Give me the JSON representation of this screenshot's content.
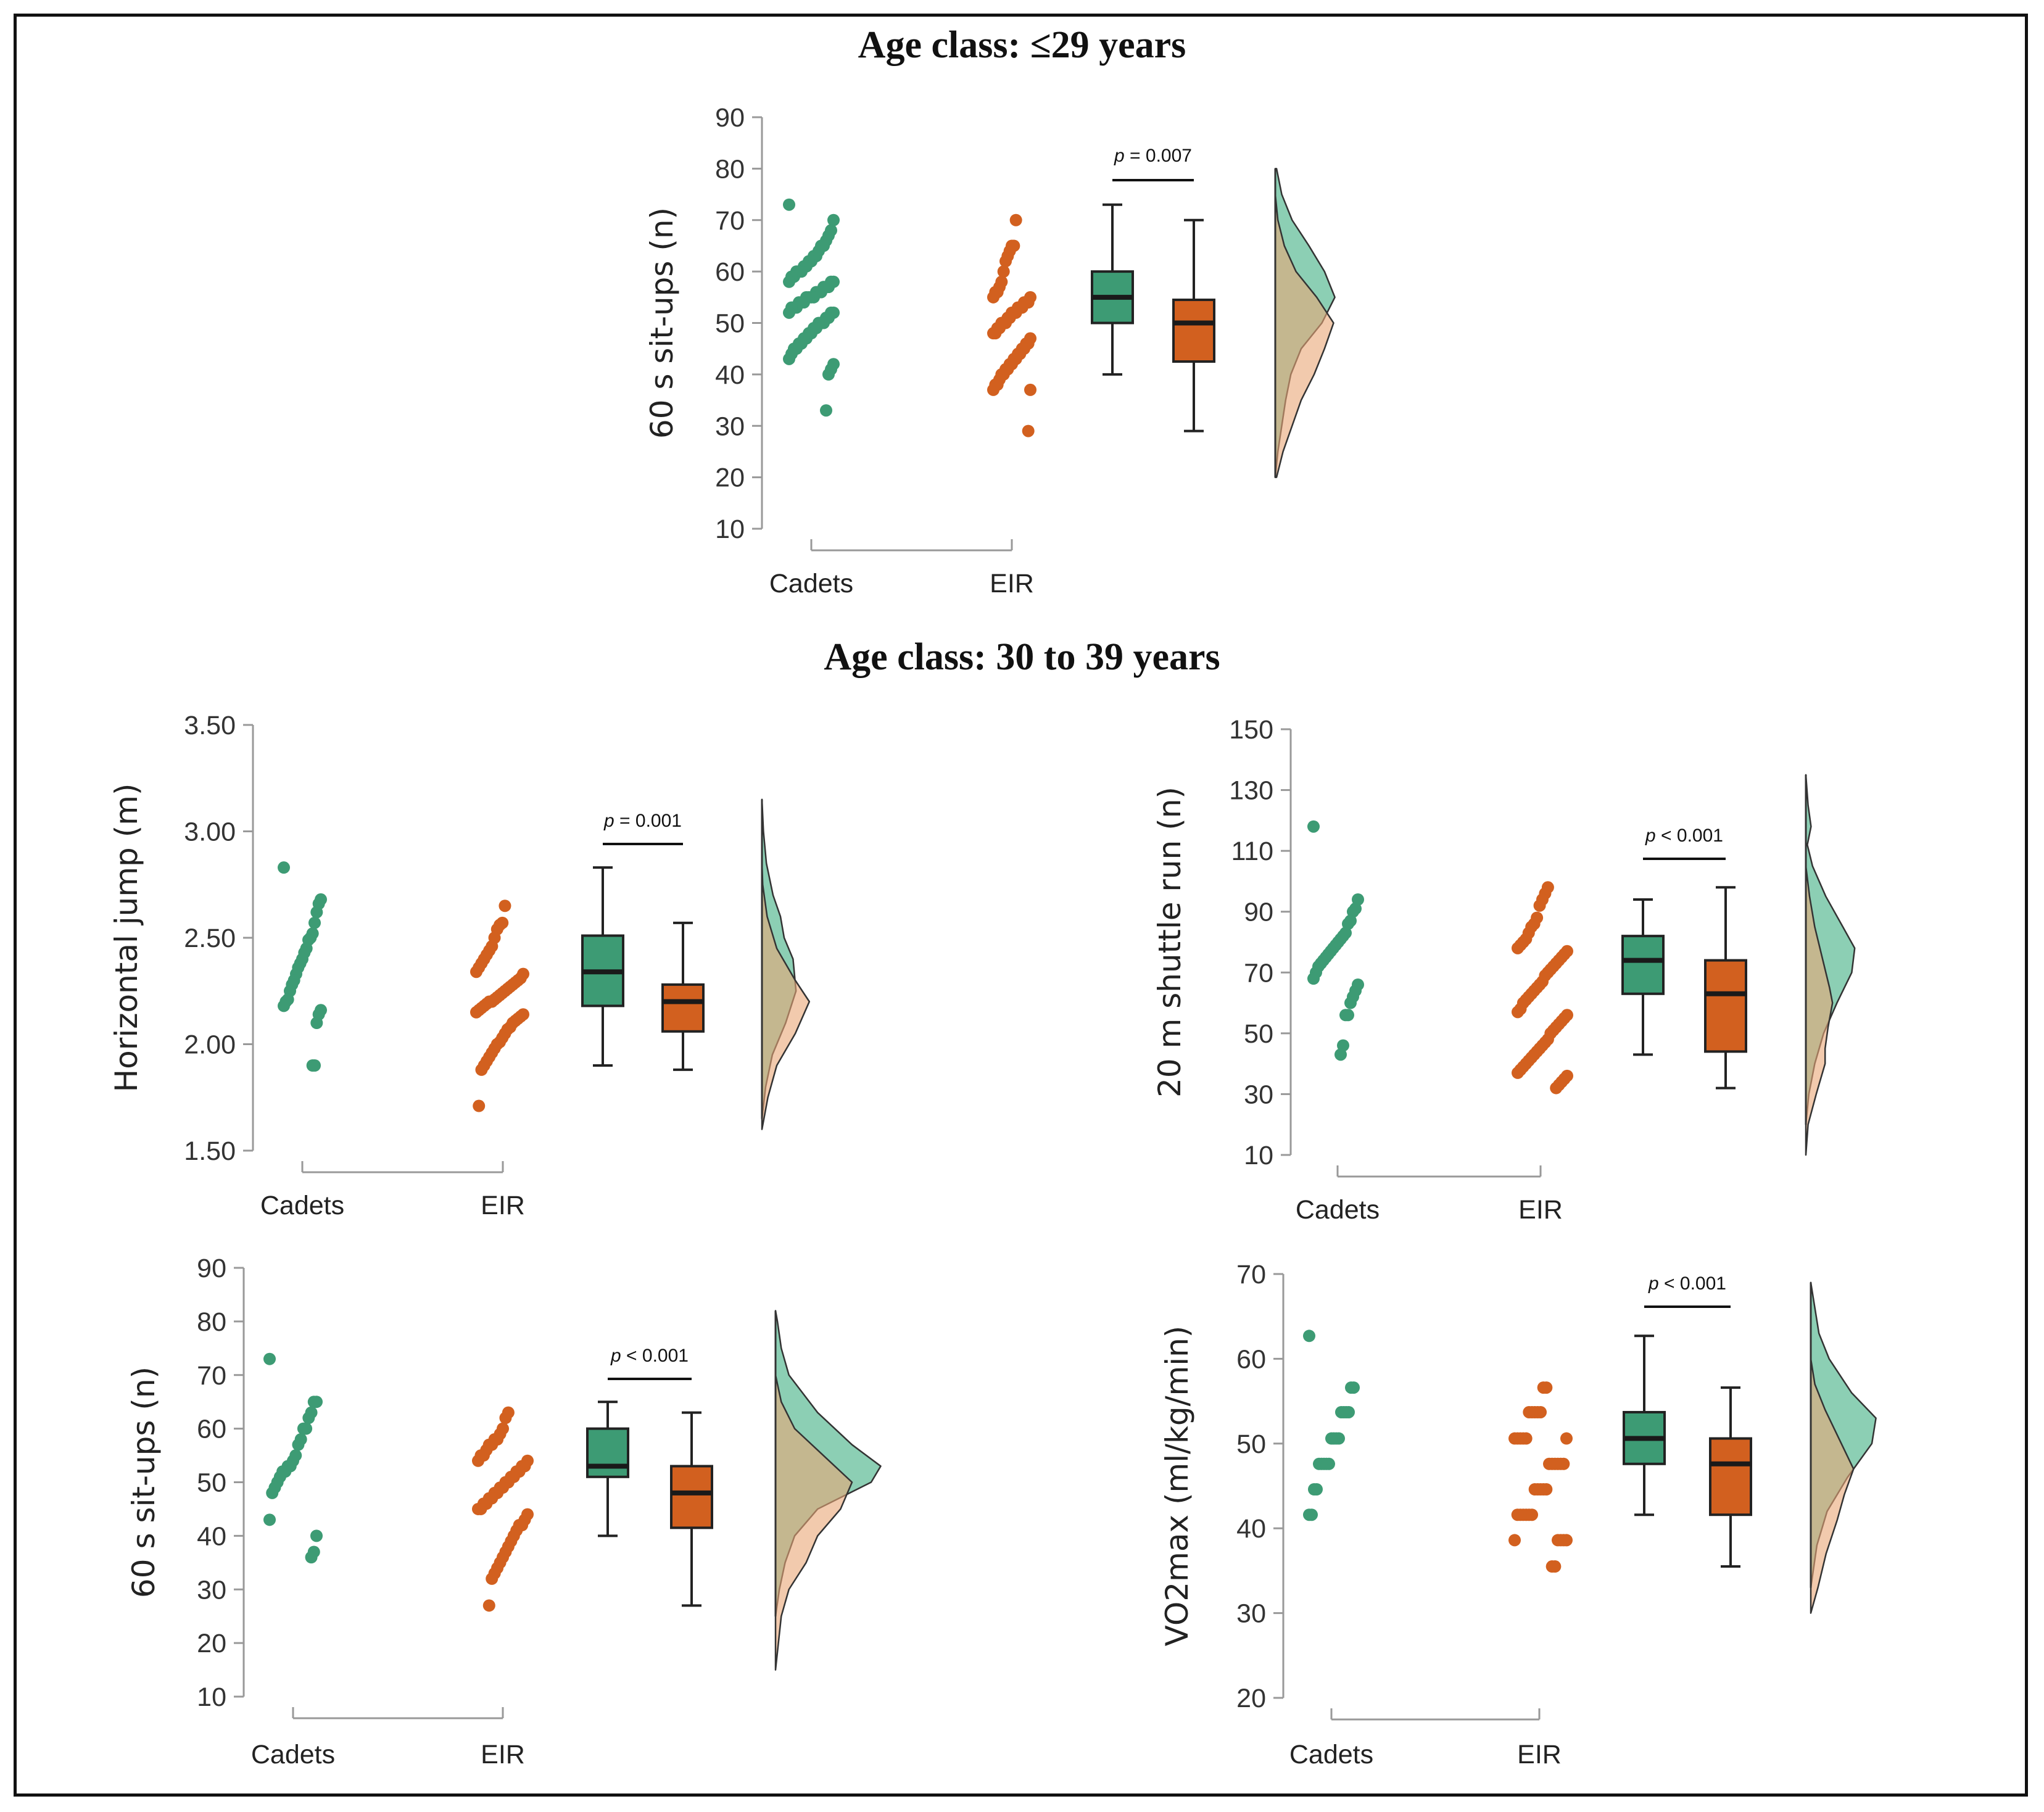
{
  "colors": {
    "cadets": "#3d9b74",
    "eir": "#d2601f",
    "cadets_density": "#8ccfb4",
    "eir_density": "#eaa677",
    "axis": "#999999",
    "box_line": "#222222"
  },
  "sections": [
    {
      "id": "s1",
      "title": "Age class: ≤29 years"
    },
    {
      "id": "s2",
      "title": "Age class: 30 to 39 years"
    }
  ],
  "chart_data": [
    {
      "type": "raincloud",
      "section": "Age class: ≤29 years",
      "ylabel": "60 s sit-ups (n)",
      "yticks": [
        10,
        20,
        30,
        40,
        50,
        60,
        70,
        80,
        90
      ],
      "ylim": [
        10,
        90
      ],
      "categories": [
        "Cadets",
        "EIR"
      ],
      "p_text": "p = 0.007",
      "series": [
        {
          "name": "Cadets",
          "box": {
            "min": 40,
            "q1": 50,
            "median": 55,
            "q3": 60,
            "max": 73
          },
          "points": [
            73,
            70,
            68,
            67,
            66,
            65,
            65,
            64,
            63,
            63,
            62,
            62,
            61,
            61,
            60,
            60,
            60,
            59,
            59,
            58,
            58,
            58,
            57,
            57,
            57,
            56,
            56,
            56,
            55,
            55,
            55,
            55,
            54,
            54,
            54,
            53,
            53,
            53,
            52,
            52,
            52,
            51,
            51,
            50,
            50,
            50,
            49,
            49,
            48,
            48,
            47,
            47,
            46,
            46,
            45,
            45,
            44,
            43,
            42,
            41,
            40,
            33
          ],
          "density": [
            [
              20,
              0.0
            ],
            [
              25,
              0.02
            ],
            [
              30,
              0.05
            ],
            [
              35,
              0.08
            ],
            [
              40,
              0.12
            ],
            [
              45,
              0.2
            ],
            [
              50,
              0.36
            ],
            [
              55,
              0.46
            ],
            [
              60,
              0.38
            ],
            [
              65,
              0.26
            ],
            [
              70,
              0.13
            ],
            [
              75,
              0.05
            ],
            [
              80,
              0.01
            ]
          ]
        },
        {
          "name": "EIR",
          "box": {
            "min": 29,
            "q1": 42.5,
            "median": 50,
            "q3": 54.5,
            "max": 70
          },
          "points": [
            70,
            65,
            65,
            64,
            63,
            62,
            60,
            58,
            57,
            56,
            56,
            55,
            55,
            54,
            54,
            54,
            53,
            53,
            53,
            52,
            52,
            52,
            51,
            51,
            50,
            50,
            50,
            49,
            49,
            48,
            48,
            47,
            46,
            46,
            45,
            45,
            44,
            44,
            43,
            43,
            42,
            42,
            41,
            41,
            40,
            40,
            39,
            38,
            38,
            37,
            37,
            29
          ],
          "density": [
            [
              20,
              0.01
            ],
            [
              25,
              0.06
            ],
            [
              30,
              0.13
            ],
            [
              35,
              0.2
            ],
            [
              40,
              0.3
            ],
            [
              45,
              0.38
            ],
            [
              50,
              0.45
            ],
            [
              55,
              0.32
            ],
            [
              60,
              0.16
            ],
            [
              65,
              0.07
            ],
            [
              70,
              0.02
            ],
            [
              75,
              0.0
            ]
          ]
        }
      ]
    },
    {
      "type": "raincloud",
      "section": "Age class: 30 to 39 years",
      "ylabel": "Horizontal jump (m)",
      "yticks": [
        1.5,
        2.0,
        2.5,
        3.0,
        3.5
      ],
      "yticklabels": [
        "1.50",
        "2.00",
        "2.50",
        "3.00",
        "3.50"
      ],
      "ylim": [
        1.5,
        3.5
      ],
      "categories": [
        "Cadets",
        "EIR"
      ],
      "p_text": "p = 0.001",
      "series": [
        {
          "name": "Cadets",
          "box": {
            "min": 1.9,
            "q1": 2.18,
            "median": 2.34,
            "q3": 2.51,
            "max": 2.83
          },
          "points": [
            2.83,
            2.68,
            2.66,
            2.62,
            2.57,
            2.52,
            2.5,
            2.49,
            2.45,
            2.43,
            2.4,
            2.38,
            2.36,
            2.33,
            2.3,
            2.28,
            2.25,
            2.21,
            2.2,
            2.18,
            2.16,
            2.14,
            2.1,
            1.9,
            1.9
          ],
          "density": [
            [
              1.65,
              0.0
            ],
            [
              1.8,
              0.05
            ],
            [
              1.95,
              0.14
            ],
            [
              2.1,
              0.32
            ],
            [
              2.25,
              0.46
            ],
            [
              2.4,
              0.42
            ],
            [
              2.5,
              0.3
            ],
            [
              2.6,
              0.25
            ],
            [
              2.7,
              0.15
            ],
            [
              2.85,
              0.06
            ],
            [
              3.0,
              0.02
            ],
            [
              3.15,
              0.0
            ]
          ]
        },
        {
          "name": "EIR",
          "box": {
            "min": 1.88,
            "q1": 2.06,
            "median": 2.2,
            "q3": 2.28,
            "max": 2.57
          },
          "points": [
            2.65,
            2.57,
            2.56,
            2.54,
            2.5,
            2.46,
            2.44,
            2.42,
            2.4,
            2.38,
            2.36,
            2.34,
            2.33,
            2.31,
            2.3,
            2.29,
            2.28,
            2.27,
            2.26,
            2.25,
            2.24,
            2.23,
            2.22,
            2.21,
            2.2,
            2.2,
            2.19,
            2.18,
            2.17,
            2.16,
            2.15,
            2.14,
            2.13,
            2.12,
            2.11,
            2.1,
            2.08,
            2.07,
            2.05,
            2.03,
            2.01,
            2.0,
            1.98,
            1.96,
            1.94,
            1.92,
            1.9,
            1.88,
            1.71
          ],
          "density": [
            [
              1.6,
              0.0
            ],
            [
              1.75,
              0.08
            ],
            [
              1.9,
              0.2
            ],
            [
              2.05,
              0.45
            ],
            [
              2.2,
              0.64
            ],
            [
              2.3,
              0.45
            ],
            [
              2.45,
              0.2
            ],
            [
              2.6,
              0.07
            ],
            [
              2.75,
              0.01
            ],
            [
              2.85,
              0.0
            ]
          ]
        }
      ]
    },
    {
      "type": "raincloud",
      "section": "Age class: 30 to 39 years",
      "ylabel": "20 m shuttle run (n)",
      "yticks": [
        10,
        30,
        50,
        70,
        90,
        110,
        130,
        150
      ],
      "ylim": [
        10,
        150
      ],
      "categories": [
        "Cadets",
        "EIR"
      ],
      "p_text": "p < 0.001",
      "series": [
        {
          "name": "Cadets",
          "box": {
            "min": 43,
            "q1": 63,
            "median": 74,
            "q3": 82,
            "max": 94
          },
          "points": [
            118,
            94,
            91,
            90,
            87,
            86,
            83,
            82,
            81,
            80,
            79,
            78,
            77,
            76,
            75,
            74,
            73,
            72,
            70,
            68,
            66,
            64,
            62,
            60,
            56,
            56,
            46,
            43
          ],
          "density": [
            [
              20,
              0.0
            ],
            [
              30,
              0.04
            ],
            [
              40,
              0.12
            ],
            [
              50,
              0.24
            ],
            [
              60,
              0.42
            ],
            [
              70,
              0.62
            ],
            [
              78,
              0.66
            ],
            [
              85,
              0.5
            ],
            [
              95,
              0.27
            ],
            [
              105,
              0.09
            ],
            [
              112,
              0.02
            ],
            [
              118,
              0.07
            ],
            [
              125,
              0.03
            ],
            [
              135,
              0.0
            ]
          ]
        },
        {
          "name": "EIR",
          "box": {
            "min": 32,
            "q1": 44,
            "median": 63,
            "q3": 74,
            "max": 98
          },
          "points": [
            98,
            96,
            94,
            92,
            88,
            86,
            85,
            83,
            81,
            80,
            79,
            78,
            77,
            76,
            75,
            74,
            73,
            72,
            71,
            70,
            69,
            67,
            66,
            65,
            64,
            63,
            62,
            61,
            60,
            58,
            57,
            56,
            55,
            54,
            53,
            52,
            51,
            50,
            48,
            47,
            46,
            45,
            44,
            43,
            42,
            41,
            40,
            39,
            38,
            37,
            36,
            35,
            34,
            33,
            32
          ],
          "density": [
            [
              10,
              0.0
            ],
            [
              20,
              0.03
            ],
            [
              30,
              0.14
            ],
            [
              40,
              0.26
            ],
            [
              45,
              0.26
            ],
            [
              52,
              0.3
            ],
            [
              60,
              0.36
            ],
            [
              65,
              0.32
            ],
            [
              75,
              0.22
            ],
            [
              85,
              0.12
            ],
            [
              95,
              0.05
            ],
            [
              105,
              0.0
            ]
          ]
        }
      ]
    },
    {
      "type": "raincloud",
      "section": "Age class: 30 to 39 years",
      "ylabel": "60 s sit-ups (n)",
      "yticks": [
        10,
        20,
        30,
        40,
        50,
        60,
        70,
        80,
        90
      ],
      "ylim": [
        10,
        90
      ],
      "categories": [
        "Cadets",
        "EIR"
      ],
      "p_text": "p < 0.001",
      "series": [
        {
          "name": "Cadets",
          "box": {
            "min": 40,
            "q1": 51,
            "median": 53,
            "q3": 60,
            "max": 65
          },
          "points": [
            73,
            65,
            65,
            63,
            62,
            60,
            60,
            58,
            57,
            55,
            54,
            53,
            53,
            52,
            52,
            51,
            50,
            49,
            48,
            43,
            40,
            37,
            36
          ],
          "density": [
            [
              25,
              0.0
            ],
            [
              30,
              0.02
            ],
            [
              35,
              0.05
            ],
            [
              40,
              0.1
            ],
            [
              45,
              0.22
            ],
            [
              50,
              0.5
            ],
            [
              53,
              0.55
            ],
            [
              57,
              0.4
            ],
            [
              63,
              0.22
            ],
            [
              70,
              0.07
            ],
            [
              75,
              0.03
            ],
            [
              80,
              0.01
            ],
            [
              82,
              0.0
            ]
          ]
        },
        {
          "name": "EIR",
          "box": {
            "min": 27,
            "q1": 41.5,
            "median": 48,
            "q3": 53,
            "max": 63
          },
          "points": [
            63,
            62,
            60,
            59,
            58,
            58,
            57,
            57,
            56,
            55,
            55,
            54,
            54,
            53,
            53,
            52,
            52,
            51,
            51,
            50,
            50,
            49,
            49,
            48,
            48,
            47,
            47,
            46,
            46,
            45,
            45,
            44,
            43,
            42,
            42,
            41,
            40,
            39,
            38,
            37,
            36,
            35,
            34,
            33,
            32,
            27
          ],
          "density": [
            [
              15,
              0.0
            ],
            [
              25,
              0.03
            ],
            [
              30,
              0.07
            ],
            [
              35,
              0.16
            ],
            [
              40,
              0.22
            ],
            [
              45,
              0.34
            ],
            [
              50,
              0.4
            ],
            [
              55,
              0.25
            ],
            [
              60,
              0.1
            ],
            [
              65,
              0.03
            ],
            [
              70,
              0.0
            ]
          ]
        }
      ]
    },
    {
      "type": "raincloud",
      "section": "Age class: 30 to 39 years",
      "ylabel": "VO2max (ml/kg/min)",
      "yticks": [
        20,
        30,
        40,
        50,
        60,
        70
      ],
      "ylim": [
        20,
        70
      ],
      "categories": [
        "Cadets",
        "EIR"
      ],
      "p_text": "p < 0.001",
      "series": [
        {
          "name": "Cadets",
          "box": {
            "min": 41.6,
            "q1": 47.6,
            "median": 50.6,
            "q3": 53.7,
            "max": 62.7
          },
          "points": [
            62.7,
            56.6,
            56.6,
            53.7,
            53.7,
            53.7,
            53.7,
            50.6,
            50.6,
            50.6,
            50.6,
            47.6,
            47.6,
            47.6,
            47.6,
            47.6,
            44.6,
            44.6,
            41.6,
            41.6
          ],
          "density": [
            [
              33,
              0.0
            ],
            [
              38,
              0.06
            ],
            [
              42,
              0.16
            ],
            [
              46,
              0.36
            ],
            [
              50,
              0.6
            ],
            [
              53,
              0.64
            ],
            [
              56,
              0.4
            ],
            [
              60,
              0.18
            ],
            [
              63,
              0.08
            ],
            [
              66,
              0.04
            ],
            [
              69,
              0.0
            ]
          ]
        },
        {
          "name": "EIR",
          "box": {
            "min": 35.5,
            "q1": 41.6,
            "median": 47.6,
            "q3": 50.6,
            "max": 56.6
          },
          "points": [
            56.6,
            56.6,
            53.7,
            53.7,
            53.7,
            53.7,
            53.7,
            50.6,
            50.6,
            50.6,
            50.6,
            50.6,
            50.6,
            47.6,
            47.6,
            47.6,
            47.6,
            47.6,
            47.6,
            44.6,
            44.6,
            44.6,
            44.6,
            44.6,
            41.6,
            41.6,
            41.6,
            41.6,
            41.6,
            41.6,
            38.6,
            38.6,
            38.6,
            38.6,
            38.6,
            35.5,
            35.5
          ],
          "density": [
            [
              30,
              0.0
            ],
            [
              33,
              0.07
            ],
            [
              37,
              0.15
            ],
            [
              41,
              0.26
            ],
            [
              44,
              0.33
            ],
            [
              47,
              0.42
            ],
            [
              50,
              0.3
            ],
            [
              54,
              0.14
            ],
            [
              57,
              0.04
            ],
            [
              60,
              0.0
            ]
          ]
        }
      ]
    }
  ]
}
